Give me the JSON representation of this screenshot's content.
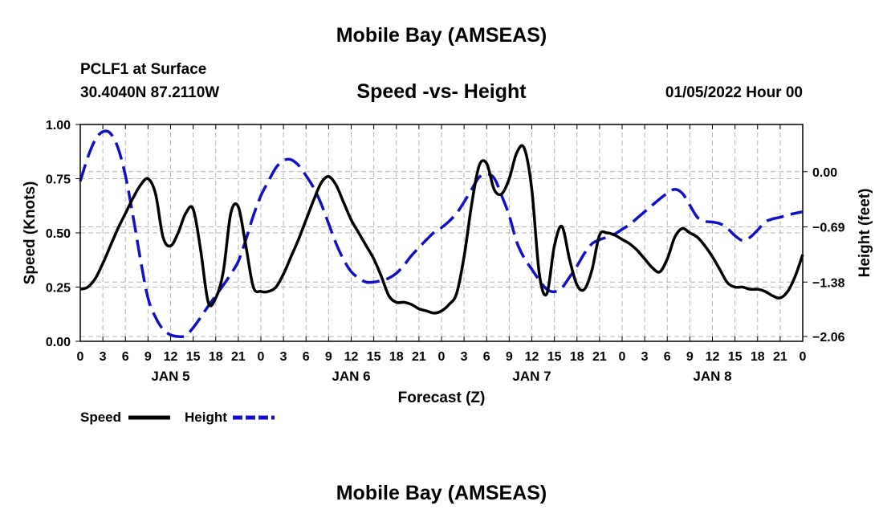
{
  "header": {
    "title": "Mobile Bay (AMSEAS)",
    "station": "PCLF1 at Surface",
    "coords": "30.4040N  87.2110W",
    "subtitle": "Speed -vs- Height",
    "datetime": "01/05/2022 Hour 00"
  },
  "footer": {
    "title": "Mobile Bay (AMSEAS)"
  },
  "chart_data": {
    "type": "line",
    "title": "Speed -vs- Height",
    "xlabel": "Forecast (Z)",
    "ylabel": "Speed (Knots)",
    "y2label": "Height (feet)",
    "xlim": [
      0,
      96
    ],
    "ylim": [
      0,
      1
    ],
    "y2lim": [
      -2.12,
      0.59
    ],
    "xticks": [
      "0",
      "3",
      "6",
      "9",
      "12",
      "15",
      "18",
      "21",
      "0",
      "3",
      "6",
      "9",
      "12",
      "15",
      "18",
      "21",
      "0",
      "3",
      "6",
      "9",
      "12",
      "15",
      "18",
      "21",
      "0",
      "3",
      "6",
      "9",
      "12",
      "15",
      "18",
      "21",
      "0"
    ],
    "day_labels": [
      {
        "label": "JAN 5",
        "hour": 12
      },
      {
        "label": "JAN 6",
        "hour": 36
      },
      {
        "label": "JAN 7",
        "hour": 60
      },
      {
        "label": "JAN 8",
        "hour": 84
      }
    ],
    "yticks": [
      "0.00",
      "0.25",
      "0.50",
      "0.75",
      "1.00"
    ],
    "y2ticks": [
      "0.00",
      "−0.69",
      "−1.38",
      "−2.06"
    ],
    "grid": true,
    "legend_position": "bottom-left",
    "series": [
      {
        "name": "Speed",
        "axis": "left",
        "color": "#000000",
        "dash": "solid",
        "x": [
          0,
          1,
          2,
          3,
          4,
          5,
          6,
          7,
          8,
          9,
          10,
          11,
          12,
          13,
          14,
          15,
          16,
          17,
          18,
          19,
          20,
          21,
          22,
          23,
          24,
          25,
          26,
          27,
          28,
          29,
          30,
          31,
          32,
          33,
          34,
          35,
          36,
          37,
          38,
          39,
          40,
          41,
          42,
          43,
          44,
          45,
          46,
          47,
          48,
          49,
          50,
          51,
          52,
          53,
          54,
          55,
          56,
          57,
          58,
          59,
          60,
          61,
          62,
          63,
          64,
          65,
          66,
          67,
          68,
          69,
          70,
          71,
          72,
          73,
          74,
          75,
          76,
          77,
          78,
          79,
          80,
          81,
          82,
          83,
          84,
          85,
          86,
          87,
          88,
          89,
          90,
          91,
          92,
          93,
          94,
          95,
          96
        ],
        "y": [
          0.24,
          0.25,
          0.29,
          0.36,
          0.44,
          0.52,
          0.59,
          0.66,
          0.72,
          0.75,
          0.68,
          0.48,
          0.44,
          0.5,
          0.59,
          0.61,
          0.42,
          0.18,
          0.2,
          0.32,
          0.59,
          0.62,
          0.44,
          0.25,
          0.23,
          0.23,
          0.25,
          0.31,
          0.39,
          0.47,
          0.56,
          0.65,
          0.73,
          0.76,
          0.72,
          0.64,
          0.56,
          0.5,
          0.44,
          0.38,
          0.3,
          0.21,
          0.18,
          0.18,
          0.17,
          0.15,
          0.14,
          0.13,
          0.14,
          0.17,
          0.22,
          0.39,
          0.63,
          0.81,
          0.82,
          0.7,
          0.68,
          0.75,
          0.87,
          0.89,
          0.7,
          0.31,
          0.22,
          0.44,
          0.53,
          0.38,
          0.26,
          0.24,
          0.33,
          0.49,
          0.5,
          0.49,
          0.47,
          0.45,
          0.42,
          0.38,
          0.34,
          0.32,
          0.38,
          0.48,
          0.52,
          0.5,
          0.48,
          0.44,
          0.39,
          0.33,
          0.27,
          0.25,
          0.25,
          0.24,
          0.24,
          0.23,
          0.21,
          0.2,
          0.23,
          0.3,
          0.4
        ]
      },
      {
        "name": "Height",
        "axis": "right",
        "color": "#1010c8",
        "dash": "dashed",
        "x": [
          0,
          1,
          2,
          3,
          4,
          5,
          6,
          7,
          8,
          9,
          10,
          11,
          12,
          13,
          14,
          15,
          16,
          17,
          18,
          19,
          20,
          21,
          22,
          23,
          24,
          25,
          26,
          27,
          28,
          29,
          30,
          31,
          32,
          33,
          34,
          35,
          36,
          37,
          38,
          39,
          40,
          41,
          42,
          43,
          44,
          45,
          46,
          47,
          48,
          49,
          50,
          51,
          52,
          53,
          54,
          55,
          56,
          57,
          58,
          59,
          60,
          61,
          62,
          63,
          64,
          65,
          66,
          67,
          68,
          69,
          70,
          71,
          72,
          73,
          74,
          75,
          76,
          77,
          78,
          79,
          80,
          81,
          82,
          83,
          84,
          85,
          86,
          87,
          88,
          89,
          90,
          91,
          92,
          93,
          94,
          95,
          96
        ],
        "y": [
          -0.12,
          0.18,
          0.4,
          0.5,
          0.48,
          0.3,
          -0.05,
          -0.55,
          -1.1,
          -1.58,
          -1.82,
          -1.97,
          -2.04,
          -2.06,
          -2.05,
          -1.95,
          -1.82,
          -1.68,
          -1.55,
          -1.42,
          -1.28,
          -1.12,
          -0.85,
          -0.55,
          -0.3,
          -0.12,
          0.05,
          0.14,
          0.15,
          0.08,
          -0.05,
          -0.2,
          -0.4,
          -0.65,
          -0.9,
          -1.1,
          -1.25,
          -1.33,
          -1.38,
          -1.38,
          -1.36,
          -1.33,
          -1.27,
          -1.17,
          -1.05,
          -0.95,
          -0.85,
          -0.76,
          -0.7,
          -0.62,
          -0.52,
          -0.38,
          -0.22,
          -0.07,
          -0.03,
          -0.08,
          -0.3,
          -0.55,
          -0.88,
          -1.08,
          -1.22,
          -1.36,
          -1.47,
          -1.5,
          -1.45,
          -1.32,
          -1.18,
          -1.02,
          -0.9,
          -0.85,
          -0.82,
          -0.78,
          -0.72,
          -0.66,
          -0.58,
          -0.5,
          -0.42,
          -0.34,
          -0.27,
          -0.22,
          -0.27,
          -0.42,
          -0.57,
          -0.62,
          -0.63,
          -0.65,
          -0.71,
          -0.8,
          -0.86,
          -0.82,
          -0.73,
          -0.63,
          -0.59,
          -0.57,
          -0.54,
          -0.52,
          -0.5
        ]
      }
    ]
  }
}
